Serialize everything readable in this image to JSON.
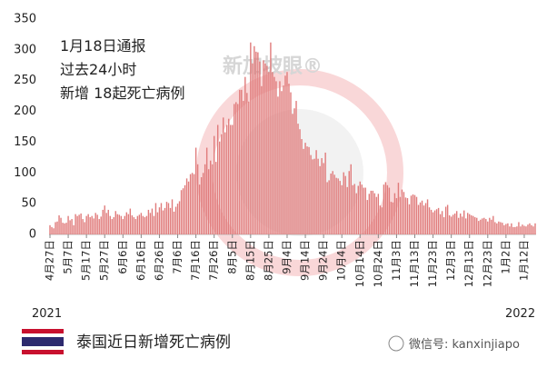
{
  "chart_data": {
    "type": "bar",
    "title": "泰国近日新增死亡病例",
    "watermark": "新加坡眼®",
    "annotations": [
      "1月18日通报",
      "过去24小时",
      "新增 18起死亡病例"
    ],
    "year_start": "2021",
    "year_end": "2022",
    "wechat": "微信号: kanxinjiapo",
    "color": "#e07b7b",
    "ylim": [
      0,
      350
    ],
    "yticks": [
      0,
      50,
      100,
      150,
      200,
      250,
      300,
      350
    ],
    "categories": [
      "4月27日",
      null,
      null,
      null,
      null,
      null,
      null,
      null,
      null,
      null,
      "5月7日",
      null,
      null,
      null,
      null,
      null,
      null,
      null,
      null,
      null,
      "5月17日",
      null,
      null,
      null,
      null,
      null,
      null,
      null,
      null,
      null,
      "5月27日",
      null,
      null,
      null,
      null,
      null,
      null,
      null,
      null,
      null,
      "6月6日",
      null,
      null,
      null,
      null,
      null,
      null,
      null,
      null,
      null,
      "6月16日",
      null,
      null,
      null,
      null,
      null,
      null,
      null,
      null,
      null,
      "6月26日",
      null,
      null,
      null,
      null,
      null,
      null,
      null,
      null,
      null,
      "7月6日",
      null,
      null,
      null,
      null,
      null,
      null,
      null,
      null,
      null,
      "7月16日",
      null,
      null,
      null,
      null,
      null,
      null,
      null,
      null,
      null,
      "7月26日",
      null,
      null,
      null,
      null,
      null,
      null,
      null,
      null,
      null,
      "8月5日",
      null,
      null,
      null,
      null,
      null,
      null,
      null,
      null,
      null,
      "8月15日",
      null,
      null,
      null,
      null,
      null,
      null,
      null,
      null,
      null,
      "8月25日",
      null,
      null,
      null,
      null,
      null,
      null,
      null,
      null,
      null,
      "9月4日",
      null,
      null,
      null,
      null,
      null,
      null,
      null,
      null,
      null,
      "9月14日",
      null,
      null,
      null,
      null,
      null,
      null,
      null,
      null,
      null,
      "9月24日",
      null,
      null,
      null,
      null,
      null,
      null,
      null,
      null,
      null,
      "10月4日",
      null,
      null,
      null,
      null,
      null,
      null,
      null,
      null,
      null,
      "10月14日",
      null,
      null,
      null,
      null,
      null,
      null,
      null,
      null,
      null,
      "10月24日",
      null,
      null,
      null,
      null,
      null,
      null,
      null,
      null,
      null,
      "11月3日",
      null,
      null,
      null,
      null,
      null,
      null,
      null,
      null,
      null,
      "11月13日",
      null,
      null,
      null,
      null,
      null,
      null,
      null,
      null,
      null,
      "11月23日",
      null,
      null,
      null,
      null,
      null,
      null,
      null,
      null,
      null,
      "12月3日",
      null,
      null,
      null,
      null,
      null,
      null,
      null,
      null,
      null,
      "12月13日",
      null,
      null,
      null,
      null,
      null,
      null,
      null,
      null,
      null,
      "12月23日",
      null,
      null,
      null,
      null,
      null,
      null,
      null,
      null,
      null,
      "1月2日",
      null,
      null,
      null,
      null,
      null,
      null,
      null,
      null,
      null,
      "1月12日",
      null,
      null,
      null,
      null,
      null,
      null
    ],
    "values": [
      15,
      12,
      10,
      20,
      21,
      31,
      27,
      19,
      18,
      19,
      30,
      23,
      25,
      15,
      33,
      30,
      32,
      34,
      25,
      20,
      30,
      33,
      28,
      30,
      26,
      35,
      32,
      25,
      29,
      40,
      47,
      35,
      40,
      30,
      25,
      28,
      38,
      33,
      32,
      30,
      25,
      30,
      36,
      33,
      42,
      31,
      28,
      25,
      30,
      32,
      35,
      30,
      28,
      30,
      40,
      35,
      42,
      30,
      51,
      36,
      44,
      51,
      39,
      43,
      53,
      51,
      43,
      57,
      37,
      45,
      50,
      54,
      72,
      75,
      80,
      91,
      86,
      98,
      100,
      98,
      141,
      114,
      81,
      93,
      100,
      114,
      141,
      106,
      120,
      114,
      160,
      118,
      178,
      151,
      163,
      190,
      166,
      178,
      188,
      178,
      178,
      212,
      215,
      212,
      235,
      235,
      217,
      256,
      230,
      216,
      312,
      278,
      306,
      297,
      296,
      281,
      241,
      283,
      278,
      274,
      264,
      312,
      264,
      256,
      249,
      224,
      249,
      233,
      242,
      258,
      264,
      245,
      231,
      196,
      205,
      217,
      180,
      171,
      155,
      139,
      149,
      143,
      142,
      129,
      122,
      123,
      137,
      123,
      111,
      124,
      116,
      133,
      85,
      88,
      99,
      103,
      97,
      92,
      91,
      87,
      80,
      101,
      95,
      77,
      103,
      114,
      80,
      82,
      67,
      79,
      86,
      81,
      76,
      76,
      56,
      66,
      71,
      71,
      67,
      61,
      66,
      47,
      44,
      81,
      85,
      80,
      76,
      53,
      52,
      67,
      59,
      84,
      61,
      73,
      69,
      60,
      59,
      49,
      63,
      65,
      64,
      61,
      48,
      52,
      55,
      47,
      51,
      57,
      44,
      40,
      36,
      39,
      41,
      43,
      33,
      38,
      28,
      45,
      48,
      31,
      29,
      32,
      34,
      38,
      27,
      34,
      29,
      39,
      26,
      35,
      33,
      31,
      30,
      28,
      27,
      22,
      24,
      26,
      27,
      25,
      21,
      27,
      24,
      30,
      20,
      18,
      21,
      20,
      19,
      15,
      17,
      18,
      13,
      18,
      12,
      12,
      13,
      20,
      13,
      16,
      14,
      13,
      16,
      18,
      15,
      13,
      18
    ]
  }
}
